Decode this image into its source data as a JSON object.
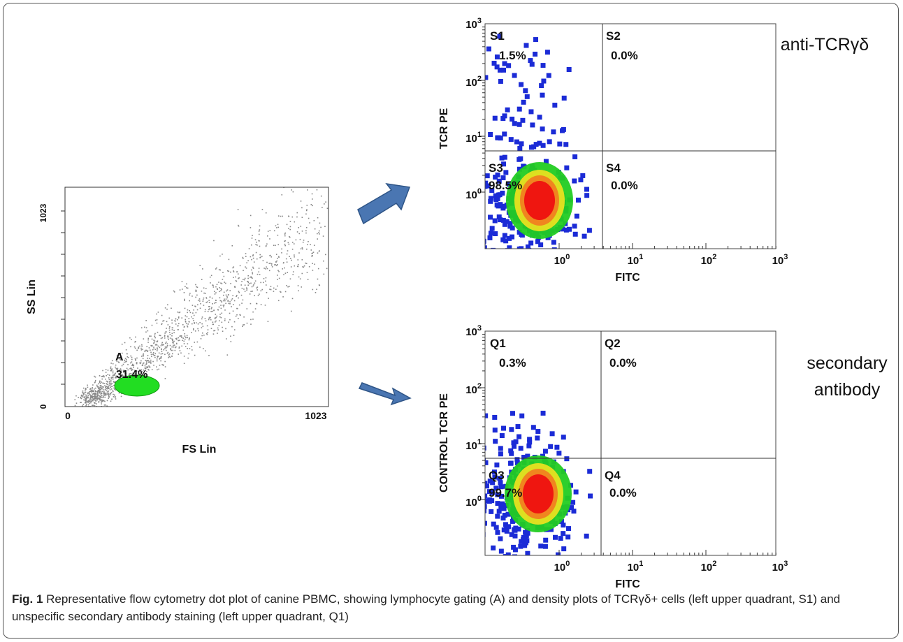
{
  "figure": {
    "gating_plot": {
      "y_label": "SS Lin",
      "x_label": "FS Lin",
      "y_ticks": [
        "1023",
        "0"
      ],
      "x_ticks": [
        "0",
        "1023"
      ],
      "gate": {
        "name": "A",
        "percent": "31.4%"
      }
    },
    "density_plots": [
      {
        "y_label": "TCR PE",
        "x_label": "FITC",
        "annotation": [
          "anti-TCRγδ"
        ],
        "y_ticks": [
          {
            "base": "10",
            "exp": "3"
          },
          {
            "base": "10",
            "exp": "2"
          },
          {
            "base": "10",
            "exp": "1"
          },
          {
            "base": "10",
            "exp": "0"
          }
        ],
        "x_ticks": [
          {
            "base": "10",
            "exp": "0"
          },
          {
            "base": "10",
            "exp": "1"
          },
          {
            "base": "10",
            "exp": "2"
          },
          {
            "base": "10",
            "exp": "3"
          }
        ],
        "quadrants": [
          {
            "name": "S1",
            "percent": "1.5%"
          },
          {
            "name": "S2",
            "percent": "0.0%"
          },
          {
            "name": "S3",
            "percent": "98.5%"
          },
          {
            "name": "S4",
            "percent": "0.0%"
          }
        ]
      },
      {
        "y_label": "CONTROL TCR PE",
        "x_label": "FITC",
        "annotation": [
          "secondary",
          "antibody"
        ],
        "y_ticks": [
          {
            "base": "10",
            "exp": "3"
          },
          {
            "base": "10",
            "exp": "2"
          },
          {
            "base": "10",
            "exp": "1"
          },
          {
            "base": "10",
            "exp": "0"
          }
        ],
        "x_ticks": [
          {
            "base": "10",
            "exp": "0"
          },
          {
            "base": "10",
            "exp": "1"
          },
          {
            "base": "10",
            "exp": "2"
          },
          {
            "base": "10",
            "exp": "3"
          }
        ],
        "quadrants": [
          {
            "name": "Q1",
            "percent": "0.3%"
          },
          {
            "name": "Q2",
            "percent": "0.0%"
          },
          {
            "name": "Q3",
            "percent": "99.7%"
          },
          {
            "name": "Q4",
            "percent": "0.0%"
          }
        ]
      }
    ]
  },
  "caption": {
    "label": "Fig. 1",
    "text": "Representative flow cytometry dot plot of canine PBMC, showing lymphocyte gating (A) and density plots of TCRγδ+ cells (left upper quadrant, S1) and unspecific secondary antibody staining (left upper quadrant, Q1)"
  }
}
